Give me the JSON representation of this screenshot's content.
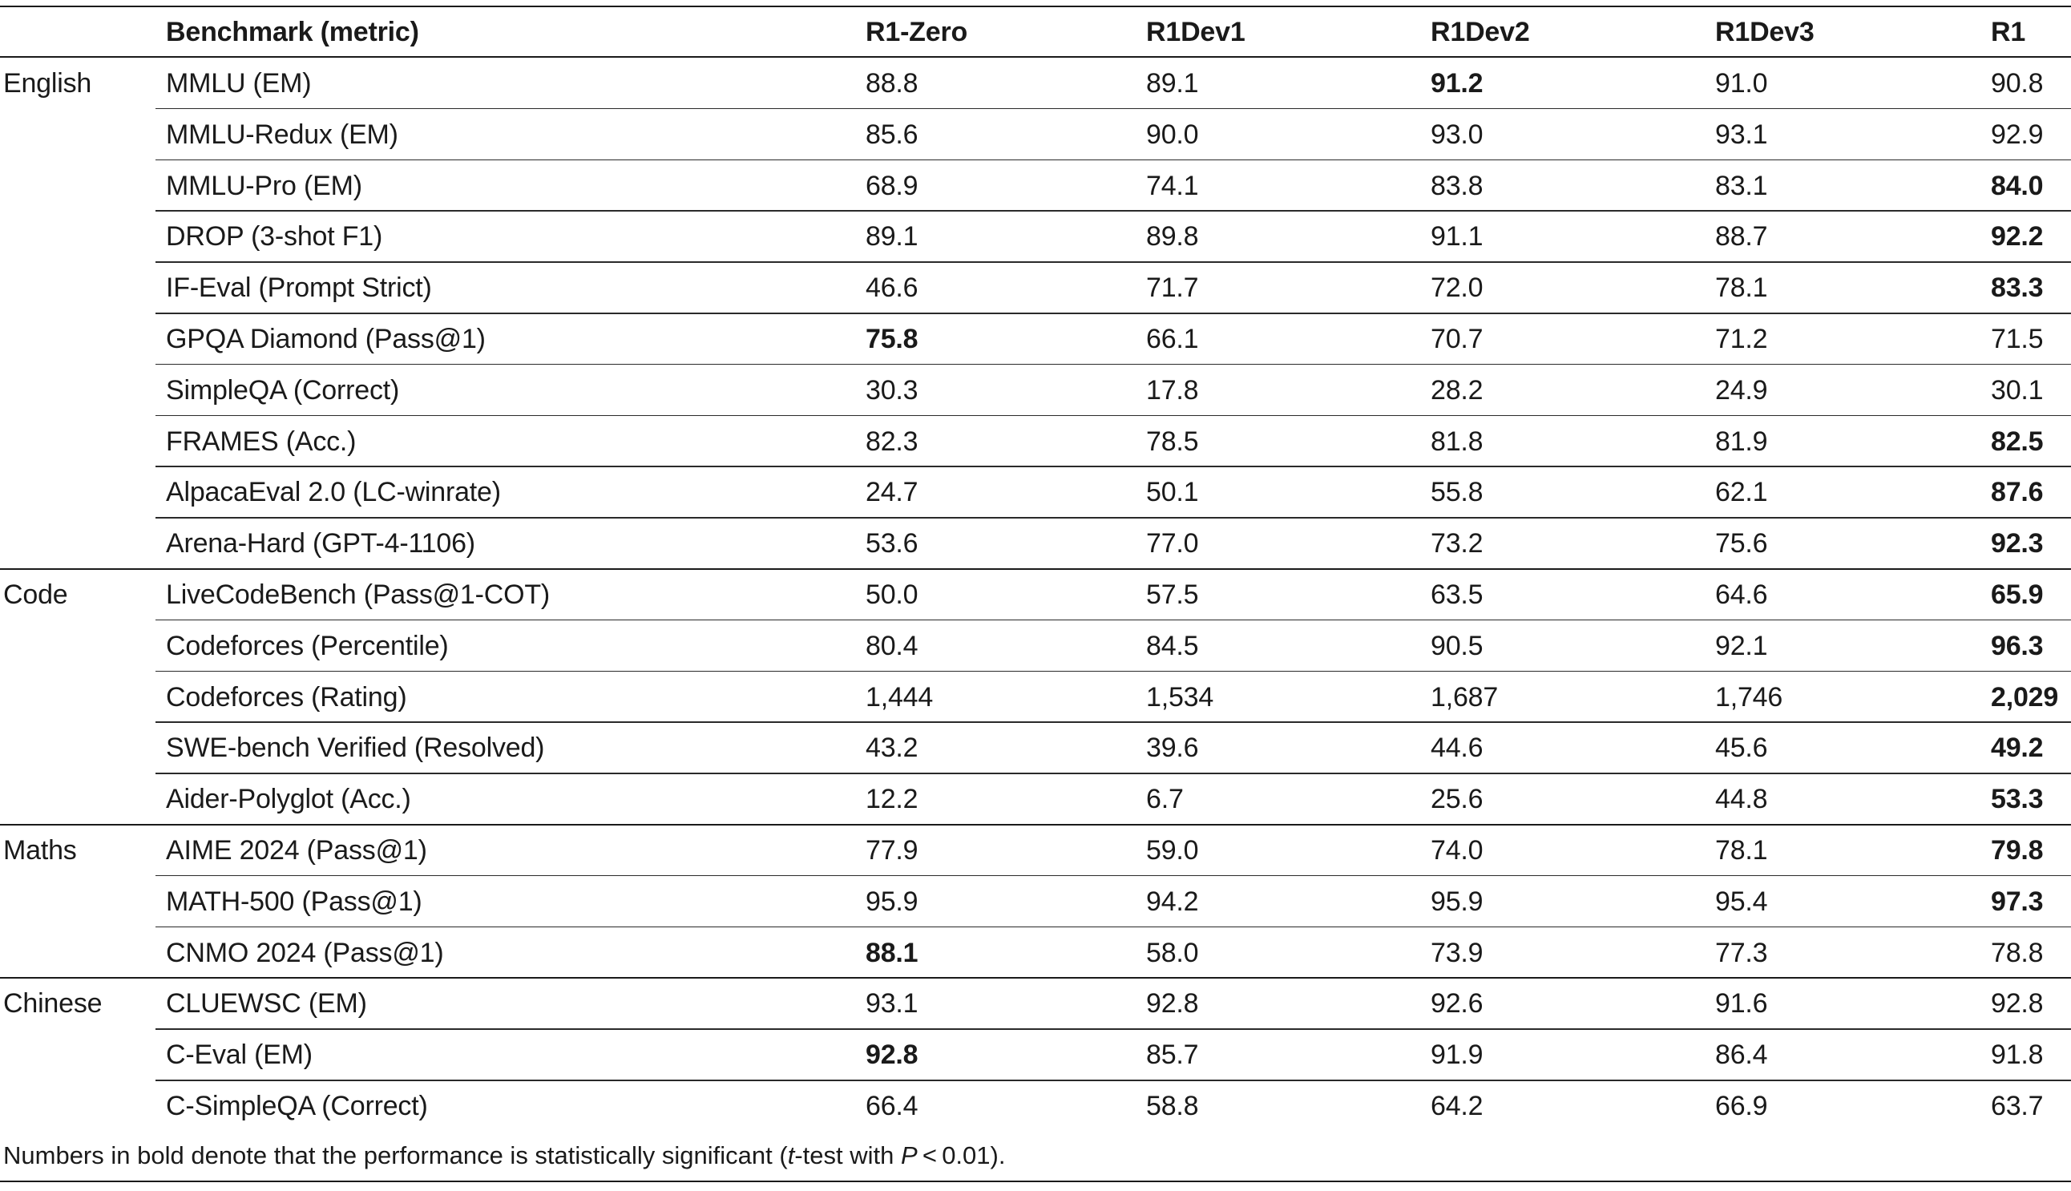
{
  "table": {
    "headers": [
      "Benchmark (metric)",
      "R1-Zero",
      "R1Dev1",
      "R1Dev2",
      "R1Dev3",
      "R1"
    ],
    "groups": [
      {
        "name": "English",
        "rows": [
          {
            "benchmark": "MMLU (EM)",
            "values": [
              "88.8",
              "89.1",
              "91.2",
              "91.0",
              "90.8"
            ],
            "bold": [
              false,
              false,
              true,
              false,
              false
            ]
          },
          {
            "benchmark": "MMLU-Redux (EM)",
            "values": [
              "85.6",
              "90.0",
              "93.0",
              "93.1",
              "92.9"
            ],
            "bold": [
              false,
              false,
              false,
              false,
              false
            ]
          },
          {
            "benchmark": "MMLU-Pro (EM)",
            "values": [
              "68.9",
              "74.1",
              "83.8",
              "83.1",
              "84.0"
            ],
            "bold": [
              false,
              false,
              false,
              false,
              true
            ]
          },
          {
            "benchmark": "DROP (3-shot F1)",
            "values": [
              "89.1",
              "89.8",
              "91.1",
              "88.7",
              "92.2"
            ],
            "bold": [
              false,
              false,
              false,
              false,
              true
            ]
          },
          {
            "benchmark": "IF-Eval (Prompt Strict)",
            "values": [
              "46.6",
              "71.7",
              "72.0",
              "78.1",
              "83.3"
            ],
            "bold": [
              false,
              false,
              false,
              false,
              true
            ]
          },
          {
            "benchmark": "GPQA Diamond (Pass@1)",
            "values": [
              "75.8",
              "66.1",
              "70.7",
              "71.2",
              "71.5"
            ],
            "bold": [
              true,
              false,
              false,
              false,
              false
            ]
          },
          {
            "benchmark": "SimpleQA (Correct)",
            "values": [
              "30.3",
              "17.8",
              "28.2",
              "24.9",
              "30.1"
            ],
            "bold": [
              false,
              false,
              false,
              false,
              false
            ]
          },
          {
            "benchmark": "FRAMES (Acc.)",
            "values": [
              "82.3",
              "78.5",
              "81.8",
              "81.9",
              "82.5"
            ],
            "bold": [
              false,
              false,
              false,
              false,
              true
            ]
          },
          {
            "benchmark": "AlpacaEval 2.0 (LC-winrate)",
            "values": [
              "24.7",
              "50.1",
              "55.8",
              "62.1",
              "87.6"
            ],
            "bold": [
              false,
              false,
              false,
              false,
              true
            ]
          },
          {
            "benchmark": "Arena-Hard (GPT-4-1106)",
            "values": [
              "53.6",
              "77.0",
              "73.2",
              "75.6",
              "92.3"
            ],
            "bold": [
              false,
              false,
              false,
              false,
              true
            ]
          }
        ]
      },
      {
        "name": "Code",
        "rows": [
          {
            "benchmark": "LiveCodeBench (Pass@1-COT)",
            "values": [
              "50.0",
              "57.5",
              "63.5",
              "64.6",
              "65.9"
            ],
            "bold": [
              false,
              false,
              false,
              false,
              true
            ]
          },
          {
            "benchmark": "Codeforces (Percentile)",
            "values": [
              "80.4",
              "84.5",
              "90.5",
              "92.1",
              "96.3"
            ],
            "bold": [
              false,
              false,
              false,
              false,
              true
            ]
          },
          {
            "benchmark": "Codeforces (Rating)",
            "values": [
              "1,444",
              "1,534",
              "1,687",
              "1,746",
              "2,029"
            ],
            "bold": [
              false,
              false,
              false,
              false,
              true
            ]
          },
          {
            "benchmark": "SWE-bench Verified (Resolved)",
            "values": [
              "43.2",
              "39.6",
              "44.6",
              "45.6",
              "49.2"
            ],
            "bold": [
              false,
              false,
              false,
              false,
              true
            ]
          },
          {
            "benchmark": "Aider-Polyglot (Acc.)",
            "values": [
              "12.2",
              "6.7",
              "25.6",
              "44.8",
              "53.3"
            ],
            "bold": [
              false,
              false,
              false,
              false,
              true
            ]
          }
        ]
      },
      {
        "name": "Maths",
        "rows": [
          {
            "benchmark": "AIME 2024 (Pass@1)",
            "values": [
              "77.9",
              "59.0",
              "74.0",
              "78.1",
              "79.8"
            ],
            "bold": [
              false,
              false,
              false,
              false,
              true
            ]
          },
          {
            "benchmark": "MATH-500 (Pass@1)",
            "values": [
              "95.9",
              "94.2",
              "95.9",
              "95.4",
              "97.3"
            ],
            "bold": [
              false,
              false,
              false,
              false,
              true
            ]
          },
          {
            "benchmark": "CNMO 2024 (Pass@1)",
            "values": [
              "88.1",
              "58.0",
              "73.9",
              "77.3",
              "78.8"
            ],
            "bold": [
              true,
              false,
              false,
              false,
              false
            ]
          }
        ]
      },
      {
        "name": "Chinese",
        "rows": [
          {
            "benchmark": "CLUEWSC (EM)",
            "values": [
              "93.1",
              "92.8",
              "92.6",
              "91.6",
              "92.8"
            ],
            "bold": [
              false,
              false,
              false,
              false,
              false
            ]
          },
          {
            "benchmark": "C-Eval (EM)",
            "values": [
              "92.8",
              "85.7",
              "91.9",
              "86.4",
              "91.8"
            ],
            "bold": [
              true,
              false,
              false,
              false,
              false
            ]
          },
          {
            "benchmark": "C-SimpleQA (Correct)",
            "values": [
              "66.4",
              "58.8",
              "64.2",
              "66.9",
              "63.7"
            ],
            "bold": [
              false,
              false,
              false,
              false,
              false
            ]
          }
        ]
      }
    ],
    "footnote": {
      "before": "Numbers in bold denote that the performance is statistically significant (",
      "t": "t",
      "middle": "-test with ",
      "p": "P",
      "after": " < 0.01)."
    }
  }
}
